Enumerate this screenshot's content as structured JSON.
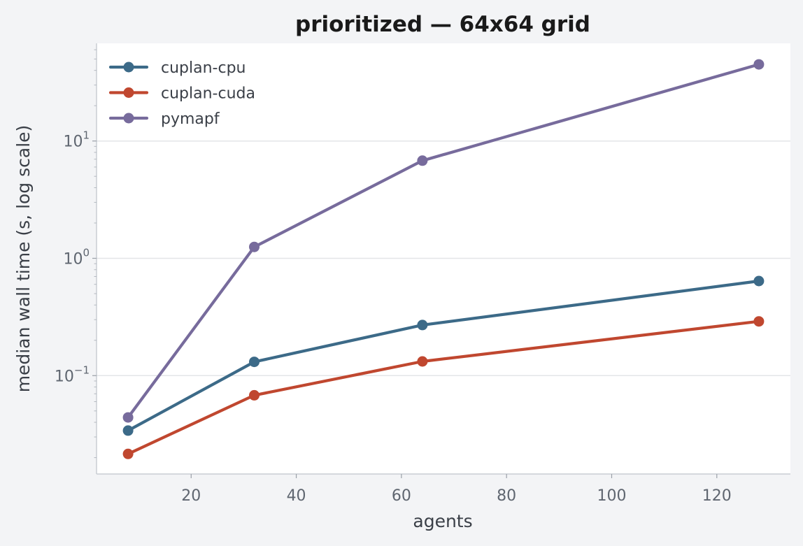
{
  "chart_data": {
    "type": "line",
    "title": "prioritized — 64x64 grid",
    "xlabel": "agents",
    "ylabel": "median wall time (s, log scale)",
    "x": [
      8,
      32,
      64,
      128
    ],
    "x_ticks": [
      20,
      40,
      60,
      80,
      100,
      120
    ],
    "xlim": [
      2,
      134
    ],
    "y_scale": "log",
    "ylim": [
      0.0145,
      68
    ],
    "y_ticks": [
      {
        "value": 0.1,
        "base": "10",
        "exp": "−1"
      },
      {
        "value": 1,
        "base": "10",
        "exp": "0"
      },
      {
        "value": 10,
        "base": "10",
        "exp": "1"
      }
    ],
    "grid": "horizontal major",
    "legend": "top-left",
    "series": [
      {
        "name": "cuplan-cpu",
        "color": "#3c6a88",
        "values": [
          0.034,
          0.131,
          0.27,
          0.64
        ]
      },
      {
        "name": "cuplan-cuda",
        "color": "#c0472f",
        "values": [
          0.0215,
          0.068,
          0.132,
          0.29
        ]
      },
      {
        "name": "pymapf",
        "color": "#776b9c",
        "values": [
          0.044,
          1.25,
          6.8,
          45
        ]
      }
    ]
  }
}
